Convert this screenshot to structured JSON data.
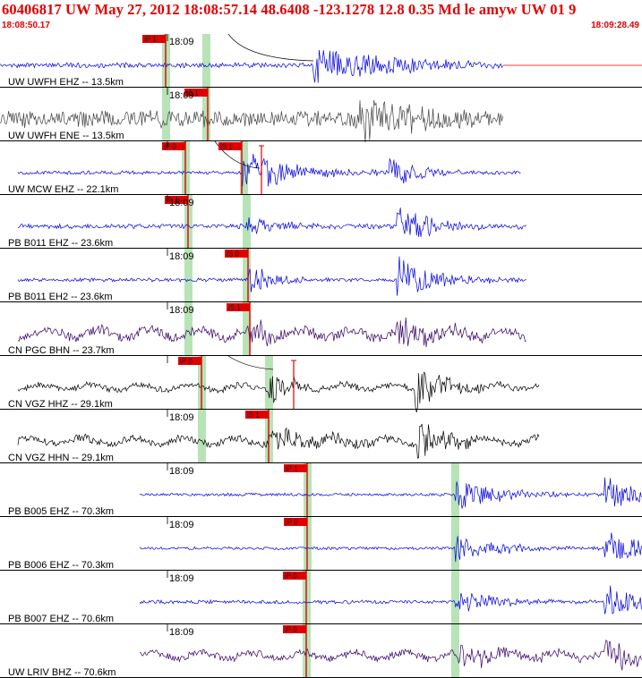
{
  "header": {
    "title": "60406817 UW May 27, 2012 18:08:57.14   48.6408 -123.1278 12.8 0.35 Md le amyw UW 01   9",
    "time_start": "18:08:50.17",
    "time_end": "18:09:28.49"
  },
  "colors": {
    "title": "#e00000",
    "pick": "#e00000",
    "window": "#b7e3b7",
    "blue": "#0000dd",
    "gray": "#444444",
    "purple": "#330066",
    "black": "#000000"
  },
  "traces": [
    {
      "label": "UW UWFH EHZ -- 13.5km",
      "time_mark": "18:09",
      "color": "blue",
      "start": 0,
      "end": 562,
      "amp": 2,
      "tail_gap": true,
      "picks": [
        {
          "label": "iP 1",
          "x": 185
        }
      ],
      "windows": [
        185,
        230
      ],
      "event": {
        "x": 350,
        "dur": 90,
        "amp": 22
      },
      "event2": null,
      "curve": [
        255,
        0,
        350,
        30
      ]
    },
    {
      "label": "UW UWFH ENE -- 13.5km",
      "time_mark": "18:09",
      "color": "gray",
      "start": 0,
      "end": 562,
      "amp": 7,
      "picks": [
        {
          "label": "iS 1",
          "x": 232
        }
      ],
      "windows": [
        185,
        230
      ],
      "event": {
        "x": 400,
        "dur": 60,
        "amp": 28
      },
      "event2": null
    },
    {
      "label": "UW MCW EHZ -- 22.1km",
      "time_mark": "",
      "color": "blue",
      "start": 20,
      "end": 582,
      "amp": 1.5,
      "picks": [
        {
          "label": "iP 0",
          "x": 207
        },
        {
          "label": "iS 1",
          "x": 270
        }
      ],
      "windows": [
        207,
        272
      ],
      "event": {
        "x": 270,
        "dur": 60,
        "amp": 25
      },
      "event2": {
        "x": 435,
        "dur": 30,
        "amp": 20
      },
      "curve": [
        240,
        0,
        290,
        30
      ],
      "spike": 292
    },
    {
      "label": "PB B011 EHZ -- 23.6km",
      "time_mark": "18:09",
      "color": "blue",
      "start": 20,
      "end": 588,
      "amp": 2,
      "picks": [
        {
          "label": "iP 1",
          "x": 210
        }
      ],
      "windows": [
        210,
        275
      ],
      "event": {
        "x": 275,
        "dur": 40,
        "amp": 10
      },
      "event2": {
        "x": 443,
        "dur": 40,
        "amp": 25
      }
    },
    {
      "label": "PB B011 EH2 -- 23.6km",
      "time_mark": "18:09",
      "color": "blue",
      "start": 20,
      "end": 588,
      "amp": 1.5,
      "picks": [
        {
          "label": "iS 0",
          "x": 277
        }
      ],
      "windows": [
        210,
        275
      ],
      "event": {
        "x": 277,
        "dur": 30,
        "amp": 18
      },
      "event2": {
        "x": 443,
        "dur": 40,
        "amp": 28
      }
    },
    {
      "label": "CN PGC BHN -- 23.7km",
      "time_mark": "18:09",
      "color": "purple",
      "start": 20,
      "end": 588,
      "amp": 4,
      "wavy": true,
      "picks": [
        {
          "label": "iS 1",
          "x": 279
        }
      ],
      "windows": [
        210,
        275
      ],
      "event": {
        "x": 279,
        "dur": 40,
        "amp": 14
      },
      "event2": {
        "x": 443,
        "dur": 40,
        "amp": 18
      }
    },
    {
      "label": "CN VGZ HHZ -- 29.1km",
      "time_mark": "",
      "color": "black",
      "start": 20,
      "end": 602,
      "amp": 2.5,
      "wavy": true,
      "picks": [
        {
          "label": "iP 0",
          "x": 225
        }
      ],
      "windows": [
        225,
        300
      ],
      "event": {
        "x": 300,
        "dur": 25,
        "amp": 20
      },
      "event2": {
        "x": 463,
        "dur": 30,
        "amp": 30
      },
      "curve": [
        255,
        0,
        305,
        15
      ],
      "spike": 328
    },
    {
      "label": "CN VGZ HHN -- 29.1km",
      "time_mark": "18:09",
      "color": "black",
      "start": 20,
      "end": 602,
      "amp": 3,
      "wavy": true,
      "picks": [
        {
          "label": "iS 1",
          "x": 300
        }
      ],
      "windows": [
        225,
        300
      ],
      "event": {
        "x": 300,
        "dur": 80,
        "amp": 12
      },
      "event2": {
        "x": 466,
        "dur": 30,
        "amp": 28
      }
    },
    {
      "label": "PB B005 EHZ -- 70.3km",
      "time_mark": "18:09",
      "color": "blue",
      "start": 156,
      "end": 717,
      "amp": 1.2,
      "picks": [
        {
          "label": "iP 1",
          "x": 343
        }
      ],
      "windows": [
        343,
        508
      ],
      "event": {
        "x": 508,
        "dur": 50,
        "amp": 18
      },
      "event2": {
        "x": 675,
        "dur": 40,
        "amp": 22
      }
    },
    {
      "label": "PB B006 EHZ -- 70.3km",
      "time_mark": "18:09",
      "color": "blue",
      "start": 156,
      "end": 717,
      "amp": 1.2,
      "picks": [
        {
          "label": "iP 0",
          "x": 343
        }
      ],
      "windows": [
        343,
        508
      ],
      "event": {
        "x": 508,
        "dur": 50,
        "amp": 16
      },
      "event2": {
        "x": 675,
        "dur": 40,
        "amp": 22
      }
    },
    {
      "label": "PB B007 EHZ -- 70.6km",
      "time_mark": "18:09",
      "color": "blue",
      "start": 156,
      "end": 717,
      "amp": 1.5,
      "picks": [
        {
          "label": "iP 0",
          "x": 342
        }
      ],
      "windows": [
        342,
        508
      ],
      "event": {
        "x": 508,
        "dur": 50,
        "amp": 14
      },
      "event2": {
        "x": 675,
        "dur": 40,
        "amp": 20
      }
    },
    {
      "label": "UW LRIV BHZ -- 70.6km",
      "time_mark": "18:09",
      "color": "purple",
      "start": 156,
      "end": 717,
      "amp": 3,
      "wavy": true,
      "picks": [
        {
          "label": "iP 0",
          "x": 342
        }
      ],
      "windows": [
        342,
        508
      ],
      "event": {
        "x": 508,
        "dur": 50,
        "amp": 16
      },
      "event2": {
        "x": 675,
        "dur": 40,
        "amp": 20
      }
    }
  ]
}
